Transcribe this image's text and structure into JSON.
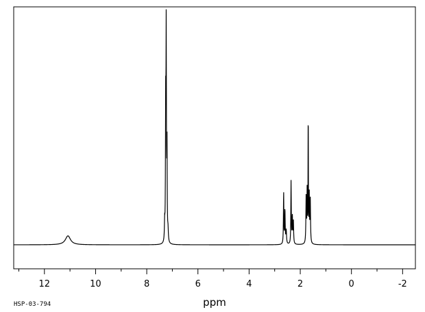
{
  "chart_data": {
    "type": "line",
    "title": "",
    "xlabel": "ppm",
    "ylabel": "",
    "xlim": [
      13.2,
      -2.5
    ],
    "x_reversed": true,
    "ylim": [
      0,
      1
    ],
    "grid": false,
    "x_ticks": [
      12,
      10,
      8,
      6,
      4,
      2,
      0,
      -2
    ],
    "x_tick_labels": [
      "12",
      "10",
      "8",
      "6",
      "4",
      "2",
      "0",
      "-2"
    ],
    "baseline": 0,
    "peaks": [
      {
        "shift": 11.08,
        "height": 0.04,
        "width": 0.12
      },
      {
        "shift": 7.3,
        "height": 0.08,
        "width": 0.012
      },
      {
        "shift": 7.26,
        "height": 0.6,
        "width": 0.01
      },
      {
        "shift": 7.24,
        "height": 0.95,
        "width": 0.008
      },
      {
        "shift": 7.21,
        "height": 0.44,
        "width": 0.01
      },
      {
        "shift": 7.17,
        "height": 0.05,
        "width": 0.015
      },
      {
        "shift": 2.65,
        "height": 0.23,
        "width": 0.01
      },
      {
        "shift": 2.6,
        "height": 0.15,
        "width": 0.012
      },
      {
        "shift": 2.55,
        "height": 0.06,
        "width": 0.015
      },
      {
        "shift": 2.36,
        "height": 0.28,
        "width": 0.01
      },
      {
        "shift": 2.31,
        "height": 0.12,
        "width": 0.012
      },
      {
        "shift": 2.27,
        "height": 0.1,
        "width": 0.012
      },
      {
        "shift": 1.77,
        "height": 0.21,
        "width": 0.012
      },
      {
        "shift": 1.73,
        "height": 0.24,
        "width": 0.01
      },
      {
        "shift": 1.69,
        "height": 0.6,
        "width": 0.007
      },
      {
        "shift": 1.65,
        "height": 0.22,
        "width": 0.01
      },
      {
        "shift": 1.61,
        "height": 0.2,
        "width": 0.012
      }
    ]
  },
  "footer": {
    "spectrum_id": "HSP-03-794"
  }
}
